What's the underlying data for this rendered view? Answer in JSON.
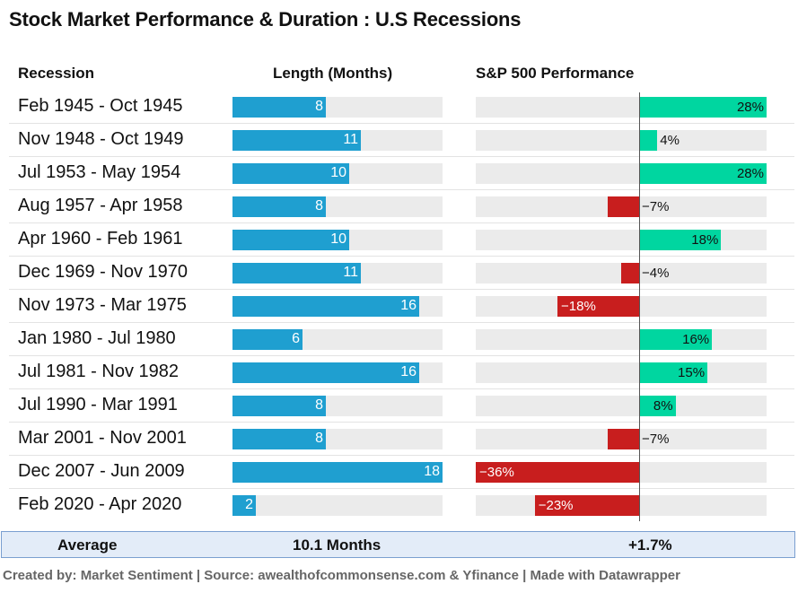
{
  "title": "Stock Market Performance & Duration : U.S Recessions",
  "headers": {
    "recession": "Recession",
    "length": "Length (Months)",
    "performance": "S&P 500 Performance"
  },
  "colors": {
    "length_bar": "#1f9fd0",
    "positive": "#00d6a0",
    "negative": "#c81e1e",
    "track": "#ebebeb"
  },
  "chart_data": {
    "type": "table",
    "columns": [
      "Recession",
      "Length (Months)",
      "S&P 500 Performance"
    ],
    "rows": [
      {
        "recession": "Feb 1945 - Oct 1945",
        "length": 8,
        "length_label": "8",
        "performance": 28,
        "performance_label": "28%"
      },
      {
        "recession": "Nov 1948 - Oct 1949",
        "length": 11,
        "length_label": "11",
        "performance": 4,
        "performance_label": "4%"
      },
      {
        "recession": "Jul 1953 - May 1954",
        "length": 10,
        "length_label": "10",
        "performance": 28,
        "performance_label": "28%"
      },
      {
        "recession": "Aug 1957 - Apr 1958",
        "length": 8,
        "length_label": "8",
        "performance": -7,
        "performance_label": "−7%"
      },
      {
        "recession": "Apr 1960 - Feb 1961",
        "length": 10,
        "length_label": "10",
        "performance": 18,
        "performance_label": "18%"
      },
      {
        "recession": "Dec 1969 - Nov 1970",
        "length": 11,
        "length_label": "11",
        "performance": -4,
        "performance_label": "−4%"
      },
      {
        "recession": "Nov 1973 - Mar 1975",
        "length": 16,
        "length_label": "16",
        "performance": -18,
        "performance_label": "−18%"
      },
      {
        "recession": "Jan 1980 - Jul 1980",
        "length": 6,
        "length_label": "6",
        "performance": 16,
        "performance_label": "16%"
      },
      {
        "recession": "Jul 1981 - Nov 1982",
        "length": 16,
        "length_label": "16",
        "performance": 15,
        "performance_label": "15%"
      },
      {
        "recession": "Jul 1990 - Mar 1991",
        "length": 8,
        "length_label": "8",
        "performance": 8,
        "performance_label": "8%"
      },
      {
        "recession": "Mar 2001 - Nov 2001",
        "length": 8,
        "length_label": "8",
        "performance": -7,
        "performance_label": "−7%"
      },
      {
        "recession": "Dec 2007 - Jun 2009",
        "length": 18,
        "length_label": "18",
        "performance": -36,
        "performance_label": "−36%"
      },
      {
        "recession": "Feb 2020 - Apr 2020",
        "length": 2,
        "length_label": "2",
        "performance": -23,
        "performance_label": "−23%"
      }
    ],
    "length_max": 18,
    "performance_range": [
      -36,
      28
    ]
  },
  "average": {
    "label": "Average",
    "length": "10.1 Months",
    "performance": "+1.7%"
  },
  "footer": "Created by: Market Sentiment | Source: awealthofcommonsense.com & Yfinance | Made with Datawrapper"
}
